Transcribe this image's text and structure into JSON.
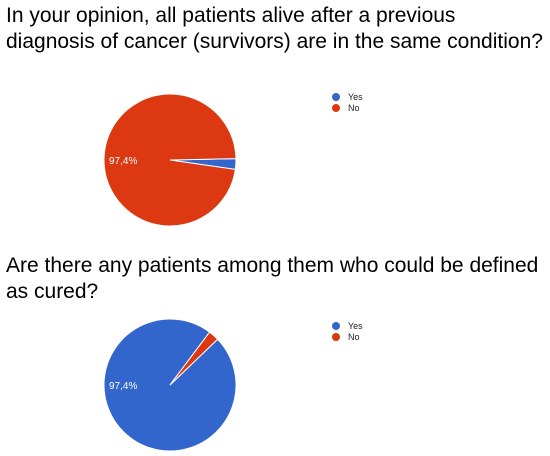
{
  "chart_data": [
    {
      "type": "pie",
      "title": "In your opinion, all patients alive after a previous diagnosis of cancer (survivors) are in the same condition?",
      "categories": [
        "Yes",
        "No"
      ],
      "values": [
        2.6,
        97.4
      ],
      "colors": [
        "#3366cc",
        "#dc3912"
      ],
      "slice_labels": [
        "",
        "97,4%"
      ],
      "legend": {
        "position": "right",
        "entries": [
          "Yes",
          "No"
        ]
      }
    },
    {
      "type": "pie",
      "title": "Are there any patients among them who could be defined as cured?",
      "categories": [
        "Yes",
        "No"
      ],
      "values": [
        97.4,
        2.6
      ],
      "colors": [
        "#3366cc",
        "#dc3912"
      ],
      "slice_labels": [
        "97,4%",
        ""
      ],
      "legend": {
        "position": "right",
        "entries": [
          "Yes",
          "No"
        ]
      }
    }
  ]
}
